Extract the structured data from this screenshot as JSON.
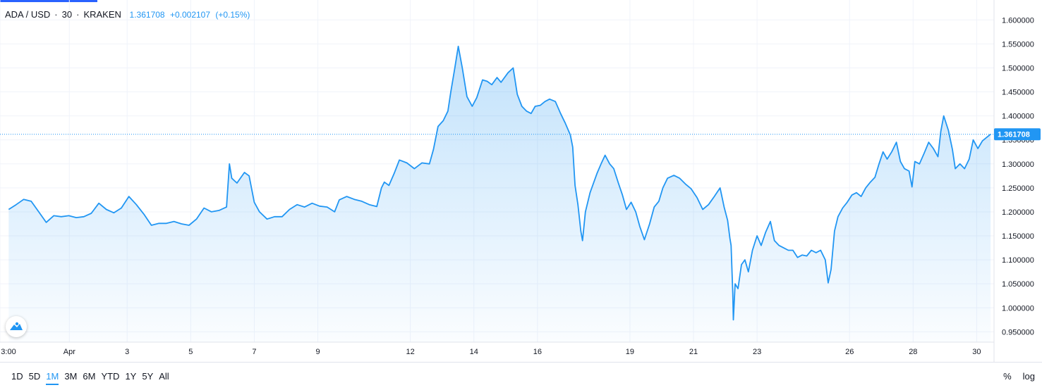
{
  "header": {
    "symbol": "ADA / USD",
    "interval": "30",
    "exchange": "KRAKEN",
    "last": "1.361708",
    "change": "+0.002107",
    "change_pct": "(+0.15%)"
  },
  "last_price_label": "1.361708",
  "range_buttons": [
    "1D",
    "5D",
    "1M",
    "3M",
    "6M",
    "YTD",
    "1Y",
    "5Y",
    "All"
  ],
  "active_range": "1M",
  "options": {
    "percent": "%",
    "log": "log"
  },
  "colors": {
    "line": "#2196f3",
    "accent": "#2962ff",
    "grid": "#f0f3fa",
    "axis_text": "#131722"
  },
  "icons": [
    "tradingview-logo-icon"
  ],
  "chart_data": {
    "type": "area",
    "series_points": [
      [
        0,
        1.205
      ],
      [
        1.3,
        1.215
      ],
      [
        2.6,
        1.226
      ],
      [
        3.9,
        1.222
      ],
      [
        5.2,
        1.2
      ],
      [
        6.5,
        1.178
      ],
      [
        7.8,
        1.192
      ],
      [
        9.1,
        1.19
      ],
      [
        10.4,
        1.192
      ],
      [
        11.7,
        1.188
      ],
      [
        13,
        1.19
      ],
      [
        14.3,
        1.197
      ],
      [
        15.6,
        1.218
      ],
      [
        16.9,
        1.205
      ],
      [
        18.2,
        1.198
      ],
      [
        19.5,
        1.208
      ],
      [
        20.8,
        1.232
      ],
      [
        22.1,
        1.215
      ],
      [
        23.4,
        1.195
      ],
      [
        24.7,
        1.172
      ],
      [
        26,
        1.176
      ],
      [
        27.3,
        1.176
      ],
      [
        28.6,
        1.18
      ],
      [
        29.9,
        1.175
      ],
      [
        31.2,
        1.172
      ],
      [
        32.5,
        1.185
      ],
      [
        33.8,
        1.208
      ],
      [
        35.1,
        1.2
      ],
      [
        36.4,
        1.203
      ],
      [
        37.7,
        1.21
      ],
      [
        38.2,
        1.3
      ],
      [
        38.6,
        1.27
      ],
      [
        39.5,
        1.26
      ],
      [
        40.8,
        1.282
      ],
      [
        41.6,
        1.275
      ],
      [
        42.5,
        1.22
      ],
      [
        43.4,
        1.2
      ],
      [
        44.7,
        1.185
      ],
      [
        46,
        1.19
      ],
      [
        47.3,
        1.19
      ],
      [
        48.6,
        1.205
      ],
      [
        49.9,
        1.215
      ],
      [
        51.2,
        1.21
      ],
      [
        52.5,
        1.218
      ],
      [
        53.8,
        1.212
      ],
      [
        55.1,
        1.21
      ],
      [
        56.4,
        1.2
      ],
      [
        57.2,
        1.225
      ],
      [
        58.5,
        1.232
      ],
      [
        59.8,
        1.226
      ],
      [
        61.1,
        1.222
      ],
      [
        62.4,
        1.215
      ],
      [
        63.7,
        1.211
      ],
      [
        64.5,
        1.25
      ],
      [
        65,
        1.262
      ],
      [
        65.8,
        1.255
      ],
      [
        66.7,
        1.28
      ],
      [
        67.6,
        1.308
      ],
      [
        68.9,
        1.302
      ],
      [
        70.2,
        1.29
      ],
      [
        71.5,
        1.302
      ],
      [
        72.8,
        1.3
      ],
      [
        73.5,
        1.33
      ],
      [
        74.3,
        1.378
      ],
      [
        75.2,
        1.39
      ],
      [
        76,
        1.41
      ],
      [
        76.5,
        1.45
      ],
      [
        77.2,
        1.5
      ],
      [
        77.8,
        1.545
      ],
      [
        78.5,
        1.5
      ],
      [
        79.3,
        1.44
      ],
      [
        80.2,
        1.42
      ],
      [
        81,
        1.438
      ],
      [
        82,
        1.475
      ],
      [
        82.8,
        1.472
      ],
      [
        83.6,
        1.465
      ],
      [
        84.5,
        1.48
      ],
      [
        85.2,
        1.47
      ],
      [
        86.4,
        1.49
      ],
      [
        87.3,
        1.5
      ],
      [
        88,
        1.445
      ],
      [
        88.8,
        1.42
      ],
      [
        89.6,
        1.41
      ],
      [
        90.4,
        1.405
      ],
      [
        91.1,
        1.42
      ],
      [
        92,
        1.422
      ],
      [
        92.8,
        1.43
      ],
      [
        93.6,
        1.435
      ],
      [
        94.6,
        1.43
      ],
      [
        95.5,
        1.405
      ],
      [
        96.3,
        1.385
      ],
      [
        97.2,
        1.36
      ],
      [
        97.6,
        1.335
      ],
      [
        98,
        1.255
      ],
      [
        98.5,
        1.215
      ],
      [
        99,
        1.16
      ],
      [
        99.3,
        1.14
      ],
      [
        99.8,
        1.2
      ],
      [
        100.6,
        1.24
      ],
      [
        101.8,
        1.28
      ],
      [
        102.5,
        1.3
      ],
      [
        103.2,
        1.318
      ],
      [
        104,
        1.3
      ],
      [
        104.7,
        1.29
      ],
      [
        105.5,
        1.26
      ],
      [
        106.2,
        1.235
      ],
      [
        106.9,
        1.205
      ],
      [
        107.7,
        1.22
      ],
      [
        108.5,
        1.2
      ],
      [
        109.2,
        1.17
      ],
      [
        110,
        1.142
      ],
      [
        110.9,
        1.175
      ],
      [
        111.7,
        1.21
      ],
      [
        112.5,
        1.222
      ],
      [
        113.2,
        1.25
      ],
      [
        114,
        1.27
      ],
      [
        115.1,
        1.276
      ],
      [
        116.1,
        1.27
      ],
      [
        117.1,
        1.258
      ],
      [
        118.1,
        1.248
      ],
      [
        119.1,
        1.23
      ],
      [
        120.1,
        1.205
      ],
      [
        121.1,
        1.215
      ],
      [
        122.1,
        1.232
      ],
      [
        123.1,
        1.25
      ],
      [
        123.8,
        1.21
      ],
      [
        124.4,
        1.182
      ],
      [
        124.8,
        1.145
      ],
      [
        125,
        1.13
      ],
      [
        125.3,
        1.03
      ],
      [
        125.4,
        0.975
      ],
      [
        125.7,
        1.05
      ],
      [
        126.2,
        1.04
      ],
      [
        126.8,
        1.09
      ],
      [
        127.4,
        1.1
      ],
      [
        128,
        1.075
      ],
      [
        128.7,
        1.12
      ],
      [
        129.5,
        1.15
      ],
      [
        130.2,
        1.13
      ],
      [
        131,
        1.158
      ],
      [
        131.8,
        1.18
      ],
      [
        132.5,
        1.14
      ],
      [
        133.3,
        1.13
      ],
      [
        134.1,
        1.125
      ],
      [
        134.9,
        1.12
      ],
      [
        135.7,
        1.12
      ],
      [
        136.5,
        1.105
      ],
      [
        137.3,
        1.11
      ],
      [
        138.1,
        1.108
      ],
      [
        138.9,
        1.12
      ],
      [
        139.7,
        1.115
      ],
      [
        140.5,
        1.12
      ],
      [
        141.3,
        1.1
      ],
      [
        141.8,
        1.052
      ],
      [
        142.3,
        1.08
      ],
      [
        142.9,
        1.16
      ],
      [
        143.5,
        1.19
      ],
      [
        144.3,
        1.208
      ],
      [
        145.1,
        1.22
      ],
      [
        145.9,
        1.235
      ],
      [
        146.7,
        1.24
      ],
      [
        147.5,
        1.232
      ],
      [
        148.3,
        1.25
      ],
      [
        149.1,
        1.262
      ],
      [
        149.9,
        1.272
      ],
      [
        150.6,
        1.3
      ],
      [
        151.3,
        1.325
      ],
      [
        152,
        1.31
      ],
      [
        152.8,
        1.325
      ],
      [
        153.6,
        1.345
      ],
      [
        154.3,
        1.305
      ],
      [
        155,
        1.29
      ],
      [
        155.8,
        1.285
      ],
      [
        156.3,
        1.252
      ],
      [
        156.8,
        1.305
      ],
      [
        157.6,
        1.3
      ],
      [
        158.4,
        1.322
      ],
      [
        159.2,
        1.345
      ],
      [
        160,
        1.332
      ],
      [
        160.8,
        1.315
      ],
      [
        161.3,
        1.368
      ],
      [
        161.8,
        1.4
      ],
      [
        162.6,
        1.37
      ],
      [
        163.3,
        1.33
      ],
      [
        163.8,
        1.29
      ],
      [
        164.6,
        1.3
      ],
      [
        165.4,
        1.29
      ],
      [
        166.2,
        1.31
      ],
      [
        166.9,
        1.35
      ],
      [
        167.7,
        1.332
      ],
      [
        168.5,
        1.348
      ],
      [
        169.2,
        1.355
      ],
      [
        169.9,
        1.3617
      ]
    ],
    "x_range": [
      -1.5,
      170.5
    ],
    "y_range": [
      0.9285,
      1.6415
    ],
    "x_ticks": [
      {
        "label": "3:00",
        "x": -1.5
      },
      {
        "label": "Apr",
        "x": 10.5
      },
      {
        "label": "3",
        "x": 20.5
      },
      {
        "label": "5",
        "x": 31.5
      },
      {
        "label": "7",
        "x": 42.5
      },
      {
        "label": "9",
        "x": 53.5
      },
      {
        "label": "12",
        "x": 69.5
      },
      {
        "label": "14",
        "x": 80.5
      },
      {
        "label": "16",
        "x": 91.5
      },
      {
        "label": "19",
        "x": 107.5
      },
      {
        "label": "21",
        "x": 118.5
      },
      {
        "label": "23",
        "x": 129.5
      },
      {
        "label": "26",
        "x": 145.5
      },
      {
        "label": "28",
        "x": 156.5
      },
      {
        "label": "30",
        "x": 167.5
      }
    ],
    "y_ticks": [
      {
        "label": "1.600000",
        "value": 1.6
      },
      {
        "label": "1.550000",
        "value": 1.55
      },
      {
        "label": "1.500000",
        "value": 1.5
      },
      {
        "label": "1.450000",
        "value": 1.45
      },
      {
        "label": "1.400000",
        "value": 1.4
      },
      {
        "label": "1.350000",
        "value": 1.35
      },
      {
        "label": "1.300000",
        "value": 1.3
      },
      {
        "label": "1.250000",
        "value": 1.25
      },
      {
        "label": "1.200000",
        "value": 1.2
      },
      {
        "label": "1.150000",
        "value": 1.15
      },
      {
        "label": "1.100000",
        "value": 1.1
      },
      {
        "label": "1.050000",
        "value": 1.05
      },
      {
        "label": "1.000000",
        "value": 1.0
      },
      {
        "label": "0.950000",
        "value": 0.95
      }
    ],
    "last_value": 1.361708,
    "grid": true,
    "y_axis_side": "right"
  }
}
